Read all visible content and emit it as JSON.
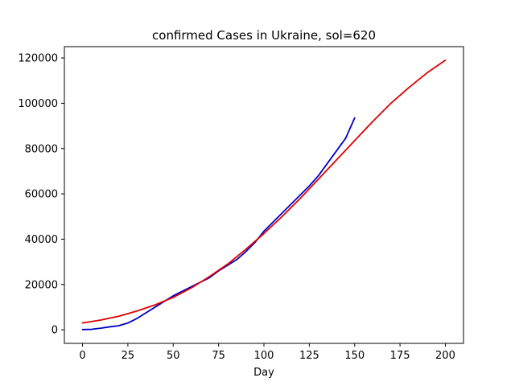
{
  "chart_data": {
    "type": "line",
    "title": "confirmed Cases in Ukraine, sol=620",
    "xlabel": "Day",
    "ylabel": "",
    "xlim": [
      -10,
      210
    ],
    "ylim": [
      -6000,
      125000
    ],
    "xticks": [
      0,
      25,
      50,
      75,
      100,
      125,
      150,
      175,
      200
    ],
    "yticks": [
      0,
      20000,
      40000,
      60000,
      80000,
      100000,
      120000
    ],
    "grid": false,
    "legend": "none",
    "series": [
      {
        "color": "#0000cc",
        "x": [
          0,
          5,
          10,
          15,
          20,
          25,
          30,
          35,
          40,
          45,
          50,
          55,
          60,
          65,
          70,
          75,
          80,
          85,
          90,
          95,
          100,
          105,
          110,
          115,
          120,
          125,
          130,
          135,
          140,
          145,
          150
        ],
        "y": [
          100,
          200,
          700,
          1300,
          1800,
          3000,
          5000,
          7500,
          10000,
          12500,
          15000,
          17000,
          19000,
          21000,
          23000,
          26000,
          28500,
          31000,
          34500,
          38500,
          43500,
          47500,
          51500,
          55500,
          59500,
          63500,
          68000,
          73500,
          79000,
          84500,
          93500
        ]
      },
      {
        "color": "#e00000",
        "x": [
          0,
          10,
          20,
          30,
          40,
          50,
          60,
          70,
          80,
          90,
          100,
          110,
          120,
          130,
          140,
          150,
          160,
          170,
          180,
          190,
          200
        ],
        "y": [
          3000,
          4300,
          6000,
          8300,
          11000,
          14300,
          18500,
          23500,
          29000,
          35500,
          42500,
          50000,
          58000,
          66500,
          75000,
          83500,
          92000,
          100000,
          107000,
          113500,
          119000
        ]
      }
    ]
  }
}
